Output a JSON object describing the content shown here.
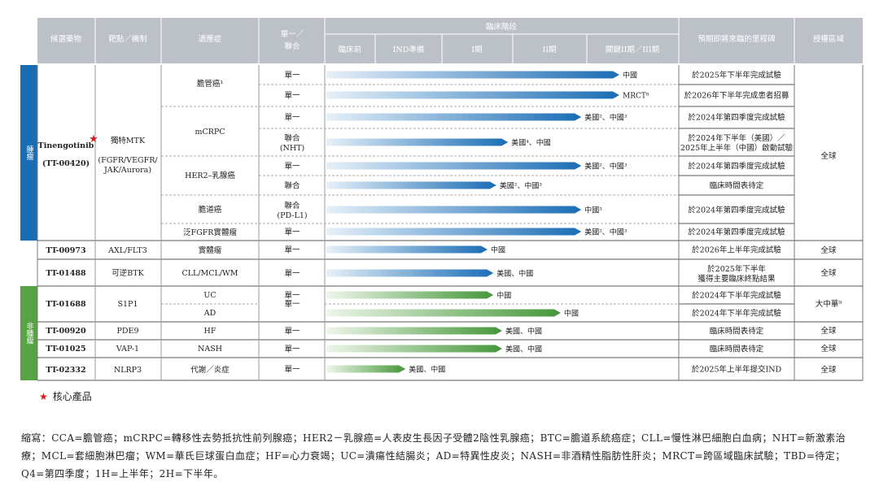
{
  "header": {
    "drug": "候選藥物",
    "target": "靶點／機制",
    "indication": "適應症",
    "mono_combo": [
      "單一／",
      "聯合"
    ],
    "clinical_stage": "臨床階段",
    "stages": [
      "臨床前",
      "IND準備",
      "I期",
      "II期",
      "關鍵II期／III期"
    ],
    "milestone": "預期即將來臨的里程碑",
    "rights": "授權區域"
  },
  "colors": {
    "header_bg": "#bcc0c7",
    "oncology": "#1a6db5",
    "non_oncology": "#56a343",
    "star": "#d71a1a"
  },
  "sections": [
    {
      "label": "腫瘤"
    },
    {
      "label": "非腫瘤"
    }
  ],
  "drugs": [
    {
      "name_lines": [
        "Tinengotinib",
        "(TT-00420)"
      ],
      "core": true,
      "target_lines": [
        "獨特MTK",
        "",
        "(FGFR/VEGFR/",
        "JAK/Aurora)"
      ]
    },
    {
      "name_lines": [
        "TT-00973"
      ],
      "target_lines": [
        "AXL/FLT3"
      ]
    },
    {
      "name_lines": [
        "TT-01488"
      ],
      "target_lines": [
        "可逆BTK"
      ]
    },
    {
      "name_lines": [
        "TT-01688"
      ],
      "target_lines": [
        "S1P1"
      ]
    },
    {
      "name_lines": [
        "TT-00920"
      ],
      "target_lines": [
        "PDE9"
      ]
    },
    {
      "name_lines": [
        "TT-01025"
      ],
      "target_lines": [
        "VAP-1"
      ]
    },
    {
      "name_lines": [
        "TT-02332"
      ],
      "target_lines": [
        "NLRP3"
      ]
    }
  ],
  "indications": [
    {
      "text": "膽管癌¹"
    },
    {
      "text": "mCRPC"
    },
    {
      "text": "HER2–乳腺癌"
    },
    {
      "text": "膽道癌"
    },
    {
      "text": "泛FGFR實體瘤"
    },
    {
      "text": "實體瘤"
    },
    {
      "text": "CLL/MCL/WM"
    },
    {
      "text": "UC"
    },
    {
      "text": "AD"
    },
    {
      "text": "HF"
    },
    {
      "text": "NASH"
    },
    {
      "text": "代謝／炎症"
    }
  ],
  "rows": [
    {
      "mono": [
        "單一"
      ],
      "progress": 1.0,
      "bar_label": "中國",
      "milestone": [
        "於2025年下半年完成試驗"
      ]
    },
    {
      "mono": [
        "單一"
      ],
      "progress": 1.0,
      "bar_label": "MRCT⁸",
      "milestone": [
        "於2026年下半年完成患者招募"
      ]
    },
    {
      "mono": [
        "單一"
      ],
      "progress": 0.87,
      "bar_label": "美國²、中國³",
      "milestone": [
        "於2024年第四季度完成試驗"
      ]
    },
    {
      "mono": [
        "聯合",
        "(NHT)"
      ],
      "progress": 0.62,
      "bar_label": "美國⁴、中國",
      "milestone": [
        "於2024年下半年（美國）／",
        "2025年上半年（中國）啟動試驗"
      ]
    },
    {
      "mono": [
        "單一"
      ],
      "progress": 0.87,
      "bar_label": "美國²、中國³",
      "milestone": [
        "於2024年第四季度完成試驗"
      ]
    },
    {
      "mono": [
        "聯合"
      ],
      "progress": 0.58,
      "bar_label": "美國²、中國³",
      "milestone": [
        "臨床時間表待定"
      ]
    },
    {
      "mono": [
        "聯合",
        "(PD-L1)"
      ],
      "progress": 0.87,
      "bar_label": "中國³",
      "milestone": [
        "於2024年第四季度完成試驗"
      ]
    },
    {
      "mono": [
        "單一"
      ],
      "progress": 0.87,
      "bar_label": "美國²、中國³",
      "milestone": [
        "於2024年第四季度完成試驗"
      ]
    },
    {
      "mono": [
        "單一"
      ],
      "progress": 0.55,
      "bar_label": "中國",
      "milestone": [
        "於2026年上半年完成試驗"
      ]
    },
    {
      "mono": [
        "單一"
      ],
      "progress": 0.57,
      "bar_label": "美國、中國",
      "milestone": [
        "於2025年下半年",
        "獲得主要臨床終點結果"
      ]
    },
    {
      "mono": [
        "單一"
      ],
      "progress": 0.57,
      "bar_label": "中國",
      "milestone": [
        "於2024年下半年完成試驗"
      ]
    },
    {
      "mono": [],
      "progress": 0.8,
      "bar_label": "中國",
      "milestone": [
        "於2024年下半年完成試驗"
      ]
    },
    {
      "mono": [
        "單一"
      ],
      "progress": 0.6,
      "bar_label": "美國、中國",
      "milestone": [
        "臨床時間表待定"
      ]
    },
    {
      "mono": [
        "單一"
      ],
      "progress": 0.6,
      "bar_label": "美國、中國",
      "milestone": [
        "臨床時間表待定"
      ]
    },
    {
      "mono": [
        "單一"
      ],
      "progress": 0.27,
      "bar_label": "美國、中國",
      "milestone": [
        "於2025年上半年提交IND"
      ]
    }
  ],
  "mono_merged": "單一",
  "rights": [
    "全球",
    "全球",
    "全球",
    "大中華⁹",
    "全球",
    "全球",
    "全球"
  ],
  "footer": {
    "star": "★",
    "core_label": "核心產品",
    "abbreviations": "縮寫：CCA=膽管癌；mCRPC=轉移性去勢抵抗性前列腺癌；HER2－乳腺癌=人表皮生長因子受體2陰性乳腺癌；BTC=膽道系統癌症；CLL=慢性淋巴細胞白血病；NHT=新激素治療；MCL=套細胞淋巴瘤；WM=華氏巨球蛋白血症；HF=心力衰竭；UC=潰瘍性結腸炎；AD=特異性皮炎；NASH=非酒精性脂肪性肝炎；MRCT=跨區域臨床試驗；TBD=待定；Q4=第四季度；1H=上半年；2H=下半年。"
  }
}
